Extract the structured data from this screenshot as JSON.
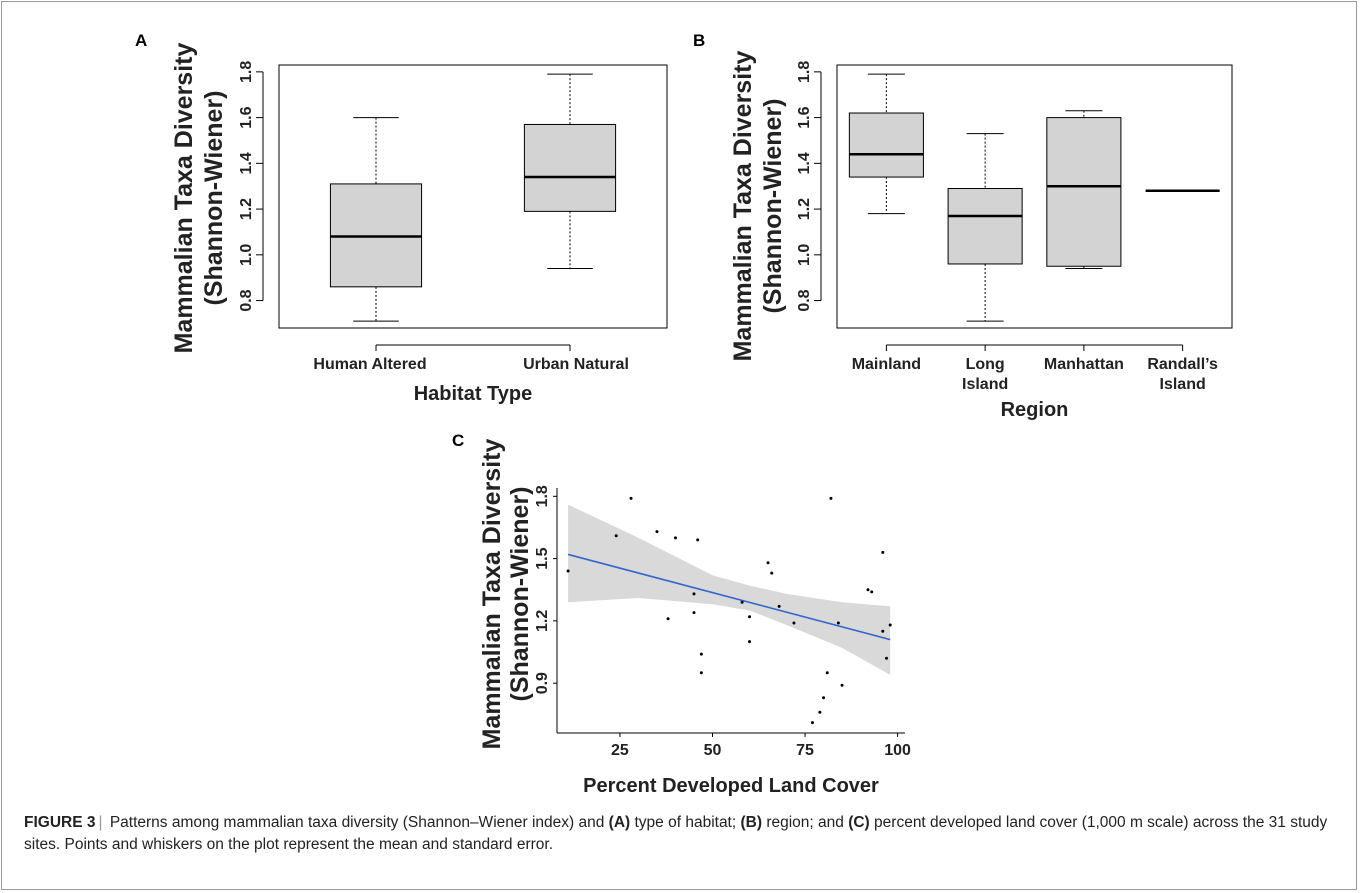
{
  "figure": {
    "caption": {
      "label": "FIGURE 3",
      "separator": "|",
      "parts": [
        {
          "text": " Patterns among mammalian taxa diversity (Shannon–Wiener index) and ",
          "bold": false
        },
        {
          "text": "(A)",
          "bold": true
        },
        {
          "text": " type of habitat; ",
          "bold": false
        },
        {
          "text": "(B)",
          "bold": true
        },
        {
          "text": " region; and ",
          "bold": false
        },
        {
          "text": "(C)",
          "bold": true
        },
        {
          "text": " percent developed land cover (1,000 m scale) across the 31 study sites. Points and whiskers on the plot represent the mean and standard error.",
          "bold": false
        }
      ]
    }
  },
  "colors": {
    "box_fill": "#d3d3d3",
    "ribbon_fill": "#d9d9d9",
    "line": "#000000",
    "trend_line": "#3366cc"
  },
  "chart_data": [
    {
      "panel": "A",
      "type": "box",
      "ylabel": [
        "Mammalian Taxa Diversity",
        "(Shannon-Wiener)"
      ],
      "xlabel": "Habitat Type",
      "yticks": [
        0.8,
        1.0,
        1.2,
        1.4,
        1.6,
        1.8
      ],
      "ytick_labels": [
        "0.8",
        "1.0",
        "1.2",
        "1.4",
        "1.6",
        "1.8"
      ],
      "ylim": [
        0.68,
        1.83
      ],
      "categories": [
        "Human Altered",
        "Urban Natural"
      ],
      "boxes": [
        {
          "min": 0.71,
          "q1": 0.86,
          "median": 1.08,
          "q3": 1.31,
          "max": 1.6
        },
        {
          "min": 0.94,
          "q1": 1.19,
          "median": 1.34,
          "q3": 1.57,
          "max": 1.79
        }
      ]
    },
    {
      "panel": "B",
      "type": "box",
      "ylabel": [
        "Mammalian Taxa Diversity",
        "(Shannon-Wiener)"
      ],
      "xlabel": "Region",
      "yticks": [
        0.8,
        1.0,
        1.2,
        1.4,
        1.6,
        1.8
      ],
      "ytick_labels": [
        "0.8",
        "1.0",
        "1.2",
        "1.4",
        "1.6",
        "1.8"
      ],
      "ylim": [
        0.68,
        1.83
      ],
      "categories": [
        "Mainland",
        "Long Island",
        "Manhattan",
        "Randall’s Island"
      ],
      "category_lines": [
        [
          "Mainland"
        ],
        [
          "Long",
          "Island"
        ],
        [
          "Manhattan"
        ],
        [
          "Randall’s",
          "Island"
        ]
      ],
      "boxes": [
        {
          "min": 1.18,
          "q1": 1.34,
          "median": 1.44,
          "q3": 1.62,
          "max": 1.79
        },
        {
          "min": 0.71,
          "q1": 0.96,
          "median": 1.17,
          "q3": 1.29,
          "max": 1.53
        },
        {
          "min": 0.94,
          "q1": 0.95,
          "median": 1.3,
          "q3": 1.6,
          "max": 1.63
        },
        {
          "min": 1.28,
          "q1": 1.28,
          "median": 1.28,
          "q3": 1.28,
          "max": 1.28
        }
      ]
    },
    {
      "panel": "C",
      "type": "scatter",
      "ylabel": [
        "Mammalian Taxa Diversity",
        "(Shannon-Wiener)"
      ],
      "xlabel": "Percent Developed Land Cover",
      "xticks": [
        25,
        50,
        75,
        100
      ],
      "xtick_labels": [
        "25",
        "50",
        "75",
        "100"
      ],
      "yticks": [
        0.9,
        1.2,
        1.5,
        1.8
      ],
      "ytick_labels": [
        "0.9",
        "1.2",
        "1.5",
        "1.8"
      ],
      "xlim": [
        8,
        102
      ],
      "ylim": [
        0.66,
        1.84
      ],
      "points": [
        {
          "x": 11,
          "y": 1.44
        },
        {
          "x": 24,
          "y": 1.61
        },
        {
          "x": 28,
          "y": 1.79
        },
        {
          "x": 35,
          "y": 1.63
        },
        {
          "x": 38,
          "y": 1.21
        },
        {
          "x": 40,
          "y": 1.6
        },
        {
          "x": 45,
          "y": 1.33
        },
        {
          "x": 45,
          "y": 1.24
        },
        {
          "x": 46,
          "y": 1.59
        },
        {
          "x": 47,
          "y": 0.95
        },
        {
          "x": 47,
          "y": 1.04
        },
        {
          "x": 58,
          "y": 1.29
        },
        {
          "x": 60,
          "y": 1.22
        },
        {
          "x": 60,
          "y": 1.1
        },
        {
          "x": 65,
          "y": 1.48
        },
        {
          "x": 66,
          "y": 1.43
        },
        {
          "x": 68,
          "y": 1.27
        },
        {
          "x": 72,
          "y": 1.19
        },
        {
          "x": 77,
          "y": 0.71
        },
        {
          "x": 79,
          "y": 0.76
        },
        {
          "x": 80,
          "y": 0.83
        },
        {
          "x": 81,
          "y": 0.95
        },
        {
          "x": 82,
          "y": 1.79
        },
        {
          "x": 84,
          "y": 1.19
        },
        {
          "x": 85,
          "y": 0.89
        },
        {
          "x": 92,
          "y": 1.35
        },
        {
          "x": 93,
          "y": 1.34
        },
        {
          "x": 96,
          "y": 1.53
        },
        {
          "x": 96,
          "y": 1.15
        },
        {
          "x": 97,
          "y": 1.02
        },
        {
          "x": 98,
          "y": 1.18
        }
      ],
      "trend": {
        "x": [
          11,
          98
        ],
        "y": [
          1.52,
          1.11
        ]
      },
      "ribbon": {
        "x": [
          11,
          30,
          50,
          60,
          70,
          85,
          98
        ],
        "lower": [
          1.29,
          1.31,
          1.28,
          1.25,
          1.18,
          1.07,
          0.94
        ],
        "upper": [
          1.76,
          1.6,
          1.42,
          1.37,
          1.33,
          1.29,
          1.27
        ]
      }
    }
  ]
}
